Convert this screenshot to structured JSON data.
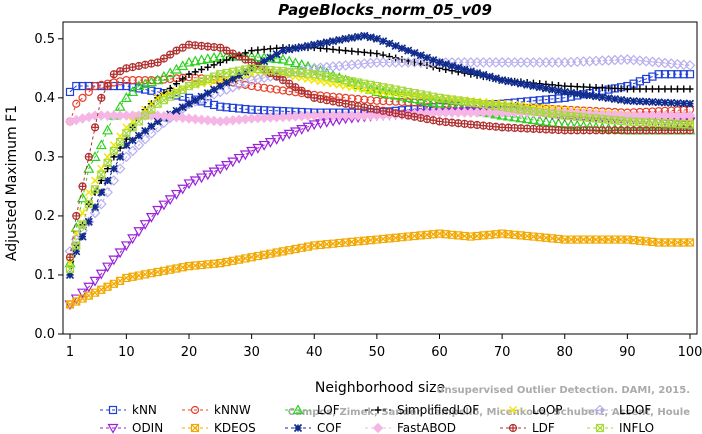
{
  "chart_data": {
    "type": "line",
    "title": "PageBlocks_norm_05_v09",
    "xlabel": "Neighborhood size",
    "ylabel": "Adjusted Maximum F1",
    "xlim": [
      1,
      100
    ],
    "ylim": [
      0.0,
      0.52
    ],
    "xticks": [
      1,
      10,
      20,
      30,
      40,
      50,
      60,
      70,
      80,
      90,
      100
    ],
    "yticks": [
      "0.0",
      "0.1",
      "0.2",
      "0.3",
      "0.4",
      "0.5"
    ],
    "grid": false,
    "legend_position": "bottom",
    "watermark": [
      "Campos, Zimek, Sander, Campello, Micenkova, Schubert, Assent, Houle",
      "Unsupervised Outlier Detection. DAMI, 2015."
    ],
    "series": [
      {
        "name": "kNN",
        "color": "#1f3fd6",
        "marker": "square",
        "x": [
          1,
          2,
          5,
          10,
          15,
          20,
          25,
          30,
          40,
          50,
          60,
          70,
          80,
          85,
          90,
          95,
          100
        ],
        "y": [
          0.41,
          0.42,
          0.42,
          0.42,
          0.41,
          0.4,
          0.385,
          0.38,
          0.375,
          0.375,
          0.385,
          0.39,
          0.4,
          0.41,
          0.42,
          0.44,
          0.44
        ]
      },
      {
        "name": "kNNW",
        "color": "#e8402a",
        "marker": "circle",
        "x": [
          1,
          2,
          5,
          10,
          15,
          20,
          25,
          30,
          40,
          50,
          60,
          70,
          80,
          90,
          100
        ],
        "y": [
          0.36,
          0.39,
          0.42,
          0.43,
          0.43,
          0.435,
          0.43,
          0.42,
          0.405,
          0.395,
          0.39,
          0.385,
          0.38,
          0.375,
          0.38
        ]
      },
      {
        "name": "LOF",
        "color": "#2ed11e",
        "marker": "triangle-up",
        "x": [
          1,
          2,
          4,
          6,
          8,
          10,
          12,
          15,
          20,
          25,
          30,
          35,
          40,
          50,
          60,
          70,
          80,
          90,
          100
        ],
        "y": [
          0.12,
          0.18,
          0.28,
          0.32,
          0.37,
          0.4,
          0.42,
          0.43,
          0.46,
          0.47,
          0.47,
          0.465,
          0.45,
          0.41,
          0.39,
          0.37,
          0.355,
          0.345,
          0.345
        ]
      },
      {
        "name": "SimplifiedLOF",
        "color": "#000000",
        "marker": "plus",
        "x": [
          1,
          2,
          4,
          6,
          8,
          10,
          12,
          15,
          20,
          25,
          30,
          35,
          40,
          50,
          60,
          70,
          80,
          90,
          100
        ],
        "y": [
          0.1,
          0.15,
          0.22,
          0.26,
          0.3,
          0.33,
          0.37,
          0.4,
          0.44,
          0.46,
          0.48,
          0.485,
          0.485,
          0.475,
          0.45,
          0.43,
          0.42,
          0.415,
          0.415
        ]
      },
      {
        "name": "LoOP",
        "color": "#f2e600",
        "marker": "x",
        "x": [
          1,
          2,
          4,
          6,
          8,
          10,
          15,
          20,
          25,
          30,
          35,
          40,
          50,
          60,
          70,
          80,
          90,
          100
        ],
        "y": [
          0.12,
          0.17,
          0.24,
          0.28,
          0.32,
          0.35,
          0.4,
          0.42,
          0.43,
          0.44,
          0.44,
          0.43,
          0.41,
          0.4,
          0.39,
          0.38,
          0.37,
          0.36
        ]
      },
      {
        "name": "LDOF",
        "color": "#b7b0ef",
        "marker": "diamond",
        "x": [
          1,
          2,
          4,
          6,
          8,
          10,
          15,
          20,
          25,
          30,
          35,
          40,
          50,
          60,
          70,
          80,
          90,
          100
        ],
        "y": [
          0.14,
          0.16,
          0.19,
          0.22,
          0.26,
          0.3,
          0.35,
          0.39,
          0.41,
          0.43,
          0.44,
          0.45,
          0.46,
          0.46,
          0.46,
          0.46,
          0.465,
          0.455
        ]
      },
      {
        "name": "ODIN",
        "color": "#9a22d9",
        "marker": "triangle-down",
        "x": [
          1,
          5,
          10,
          15,
          20,
          25,
          30,
          35,
          40,
          45,
          50,
          60,
          70,
          80,
          90,
          100
        ],
        "y": [
          0.05,
          0.09,
          0.15,
          0.21,
          0.255,
          0.28,
          0.31,
          0.335,
          0.355,
          0.365,
          0.37,
          0.375,
          0.38,
          0.37,
          0.365,
          0.36
        ]
      },
      {
        "name": "KDEOS",
        "color": "#f2a800",
        "marker": "square-x",
        "x": [
          1,
          5,
          10,
          15,
          20,
          25,
          30,
          35,
          40,
          45,
          50,
          55,
          60,
          65,
          70,
          75,
          80,
          85,
          90,
          95,
          100
        ],
        "y": [
          0.05,
          0.07,
          0.095,
          0.105,
          0.115,
          0.12,
          0.13,
          0.14,
          0.15,
          0.155,
          0.16,
          0.165,
          0.17,
          0.165,
          0.17,
          0.165,
          0.16,
          0.16,
          0.16,
          0.155,
          0.155
        ]
      },
      {
        "name": "COF",
        "color": "#102b8c",
        "marker": "asterisk",
        "x": [
          1,
          2,
          4,
          6,
          8,
          10,
          15,
          20,
          25,
          30,
          35,
          40,
          45,
          48,
          50,
          55,
          60,
          70,
          80,
          90,
          100
        ],
        "y": [
          0.1,
          0.14,
          0.19,
          0.24,
          0.28,
          0.32,
          0.36,
          0.39,
          0.42,
          0.45,
          0.48,
          0.49,
          0.5,
          0.505,
          0.5,
          0.48,
          0.46,
          0.43,
          0.41,
          0.395,
          0.39
        ]
      },
      {
        "name": "FastABOD",
        "color": "#f5b6e6",
        "marker": "diamond-filled",
        "x": [
          1,
          5,
          10,
          15,
          20,
          25,
          30,
          40,
          50,
          60,
          70,
          80,
          90,
          100
        ],
        "y": [
          0.36,
          0.37,
          0.37,
          0.37,
          0.365,
          0.36,
          0.365,
          0.37,
          0.37,
          0.375,
          0.375,
          0.375,
          0.37,
          0.37
        ]
      },
      {
        "name": "LDF",
        "color": "#b02f2f",
        "marker": "circle-plus",
        "x": [
          1,
          2,
          4,
          6,
          8,
          10,
          15,
          18,
          20,
          25,
          30,
          35,
          40,
          50,
          60,
          70,
          80,
          90,
          100
        ],
        "y": [
          0.13,
          0.2,
          0.3,
          0.4,
          0.44,
          0.45,
          0.46,
          0.48,
          0.49,
          0.485,
          0.46,
          0.43,
          0.4,
          0.38,
          0.36,
          0.35,
          0.345,
          0.345,
          0.345
        ]
      },
      {
        "name": "INFLO",
        "color": "#a6d93b",
        "marker": "square-x",
        "x": [
          1,
          2,
          4,
          6,
          8,
          10,
          15,
          20,
          25,
          30,
          35,
          40,
          50,
          60,
          70,
          80,
          90,
          100
        ],
        "y": [
          0.11,
          0.15,
          0.22,
          0.27,
          0.31,
          0.34,
          0.39,
          0.42,
          0.44,
          0.45,
          0.445,
          0.44,
          0.42,
          0.4,
          0.385,
          0.37,
          0.36,
          0.355
        ]
      }
    ]
  }
}
